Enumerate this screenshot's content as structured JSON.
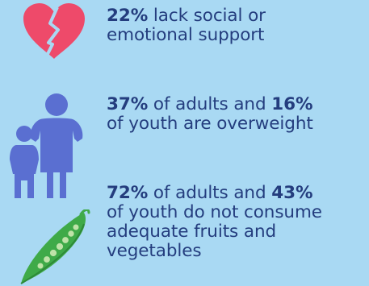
{
  "stats": [
    {
      "icon": "broken-heart-icon",
      "color": "#ee4a6a",
      "lines": [
        {
          "bold": "22%",
          "text": " lack social or"
        },
        {
          "text": "emotional support"
        }
      ]
    },
    {
      "icon": "adult-and-child-icon",
      "color": "#5a6fd1",
      "lines": [
        {
          "bold": "37%",
          "text": " of adults and ",
          "bold2": "16%"
        },
        {
          "text": "of youth are overweight"
        }
      ]
    },
    {
      "icon": "pea-pod-icon",
      "color": "#3faa48",
      "lines": [
        {
          "bold": "72%",
          "text": " of adults and ",
          "bold2": "43%"
        },
        {
          "text": "of youth do not consume"
        },
        {
          "text": "adequate fruits and"
        },
        {
          "text": "vegetables"
        }
      ]
    }
  ]
}
